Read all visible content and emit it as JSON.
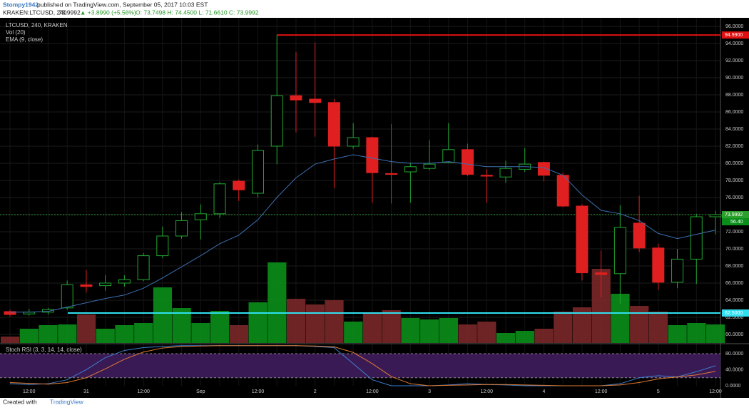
{
  "header": {
    "author": "Stompy1942",
    "published": "published on TradingView.com, September 05, 2017 10:03 EST",
    "symbol": "KRAKEN:LTCUSD, 240",
    "price": "73.9992",
    "change": "▲ +3.8990 (+5.56%)",
    "ohlc": "O: 73.7498 H: 74.4500 L: 71.6610 C: 73.9992"
  },
  "footer": {
    "created": "Created with",
    "brand": "TradingView"
  },
  "chart_data": {
    "type": "candlestick",
    "title": "LTCUSD, 240, KRAKEN",
    "legend": [
      "Vol (20)",
      "EMA (9, close)"
    ],
    "categories": [
      null,
      "12:00",
      null,
      null,
      "31",
      null,
      null,
      "12:00",
      null,
      null,
      "Sep",
      null,
      null,
      "12:00",
      null,
      null,
      "2",
      null,
      null,
      "12:00",
      null,
      null,
      "3",
      null,
      null,
      "12:00",
      null,
      null,
      "4",
      null,
      null,
      "12:00",
      null,
      null,
      "5",
      null,
      null,
      "12:00"
    ],
    "open": [
      62.67,
      62.4,
      62.6,
      63.1,
      65.8,
      65.7,
      66.0,
      66.4,
      69.2,
      71.5,
      73.4,
      74.1,
      77.9,
      76.5,
      82.0,
      87.9,
      87.5,
      87.1,
      82.0,
      83.0,
      78.8,
      79.0,
      79.4,
      80.1,
      81.6,
      78.6,
      78.4,
      79.3,
      80.1,
      78.6,
      75.0,
      67.2,
      67.1,
      73.0,
      70.1,
      66.1,
      68.8,
      73.7498
    ],
    "high": [
      62.9,
      63.0,
      63.1,
      66.3,
      67.5,
      66.9,
      66.9,
      69.5,
      72.6,
      74.3,
      75.2,
      77.8,
      78.1,
      82.2,
      94.99,
      93.0,
      94.1,
      87.5,
      84.7,
      83.1,
      84.6,
      80.1,
      82.7,
      84.7,
      82.3,
      79.3,
      80.3,
      81.8,
      80.2,
      78.9,
      75.2,
      69.8,
      75.1,
      76.2,
      70.6,
      70.0,
      74.1,
      74.45
    ],
    "low": [
      62.1,
      62.2,
      62.3,
      62.9,
      64.9,
      65.1,
      65.6,
      66.2,
      68.9,
      71.2,
      71.1,
      73.6,
      75.6,
      76.0,
      79.9,
      83.6,
      83.1,
      77.1,
      81.7,
      75.4,
      75.3,
      75.4,
      79.2,
      80.0,
      78.5,
      75.4,
      77.7,
      79.0,
      77.9,
      74.9,
      66.3,
      64.3,
      63.6,
      69.6,
      65.2,
      65.4,
      65.9,
      71.661
    ],
    "close": [
      62.33,
      62.6,
      62.9,
      65.8,
      65.6,
      66.0,
      66.4,
      69.2,
      71.5,
      73.3,
      74.1,
      77.6,
      76.9,
      81.5,
      87.9,
      87.4,
      87.1,
      82.0,
      83.0,
      78.9,
      78.7,
      79.6,
      79.9,
      81.6,
      78.7,
      78.5,
      79.4,
      79.9,
      78.6,
      75.0,
      67.2,
      67.0,
      72.5,
      70.1,
      66.1,
      68.8,
      73.75,
      73.9992
    ],
    "up_color": "#22a830",
    "down_color": "#e02020",
    "ema": {
      "color": "#3d6fb0",
      "values": [
        62.6,
        62.6,
        62.7,
        63.2,
        63.7,
        64.2,
        64.6,
        65.4,
        66.6,
        67.9,
        69.2,
        70.6,
        71.6,
        73.4,
        76.0,
        78.3,
        79.9,
        80.5,
        81.0,
        80.6,
        80.2,
        80.0,
        80.0,
        80.2,
        79.9,
        79.6,
        79.6,
        79.6,
        79.5,
        78.6,
        76.3,
        74.5,
        74.1,
        73.3,
        71.8,
        71.2,
        71.7,
        72.2
      ]
    },
    "volume": {
      "ylim": [
        0,
        456
      ],
      "up_color": "#0a8f1a",
      "down_color": "#7a2828",
      "values": [
        9,
        20,
        25,
        26,
        40,
        20,
        25,
        28,
        78,
        49,
        28,
        45,
        25,
        57,
        113,
        62,
        54,
        60,
        30,
        41,
        46,
        35,
        33,
        35,
        26,
        30,
        14,
        17,
        20,
        44,
        50,
        104,
        69,
        52,
        44,
        25,
        28,
        26
      ],
      "label": "56.40"
    },
    "ylim": [
      59,
      97
    ],
    "yticks": [
      {
        "value": 60,
        "label": "60.0000"
      },
      {
        "value": 62,
        "label": "62.0000"
      },
      {
        "value": 64,
        "label": "64.0000"
      },
      {
        "value": 66,
        "label": "66.0000"
      },
      {
        "value": 68,
        "label": "68.0000"
      },
      {
        "value": 70,
        "label": "70.0000"
      },
      {
        "value": 72,
        "label": "72.0000"
      },
      {
        "value": 74,
        "label": "74.0000"
      },
      {
        "value": 76,
        "label": "76.0000"
      },
      {
        "value": 78,
        "label": "78.0000"
      },
      {
        "value": 80,
        "label": "80.0000"
      },
      {
        "value": 82,
        "label": "82.0000"
      },
      {
        "value": 84,
        "label": "84.0000"
      },
      {
        "value": 86,
        "label": "86.0000"
      },
      {
        "value": 88,
        "label": "88.0000"
      },
      {
        "value": 90,
        "label": "90.0000"
      },
      {
        "value": 92,
        "label": "92.0000"
      },
      {
        "value": 94,
        "label": "94.0000"
      },
      {
        "value": 96,
        "label": "96.0000"
      }
    ],
    "hlines": [
      {
        "value": 94.99,
        "label": "94.9900",
        "color": "#e01010"
      },
      {
        "value": 62.5,
        "label": "62.5000",
        "color": "#30e0f0"
      }
    ],
    "last_price": {
      "value": 73.9992,
      "label": "73.9992",
      "color": "#2ca02c"
    },
    "grid": true,
    "stoch": {
      "title": "Stoch RSI (3, 3, 14, 14, close)",
      "ylim": [
        0,
        103
      ],
      "bands": [
        20,
        80
      ],
      "band_color": "#3a1a55",
      "yticks": [
        {
          "value": 0,
          "label": "0.0000"
        },
        {
          "value": 40,
          "label": "40.0000"
        },
        {
          "value": 80,
          "label": "80.0000"
        }
      ],
      "series": [
        {
          "color": "#3d7fd0",
          "values": [
            5,
            3,
            5,
            15,
            40,
            70,
            88,
            95,
            98,
            100,
            100,
            100,
            100,
            100,
            100,
            100,
            98,
            95,
            55,
            15,
            0,
            0,
            0,
            2,
            5,
            3,
            2,
            0,
            0,
            0,
            0,
            0,
            5,
            20,
            25,
            22,
            35,
            50
          ]
        },
        {
          "color": "#e07a30",
          "values": [
            8,
            6,
            4,
            8,
            20,
            42,
            66,
            84,
            94,
            98,
            99,
            100,
            100,
            100,
            100,
            100,
            99,
            97,
            83,
            55,
            23,
            5,
            0,
            1,
            2,
            3,
            3,
            2,
            1,
            0,
            0,
            0,
            2,
            8,
            17,
            22,
            27,
            36
          ]
        }
      ]
    }
  }
}
